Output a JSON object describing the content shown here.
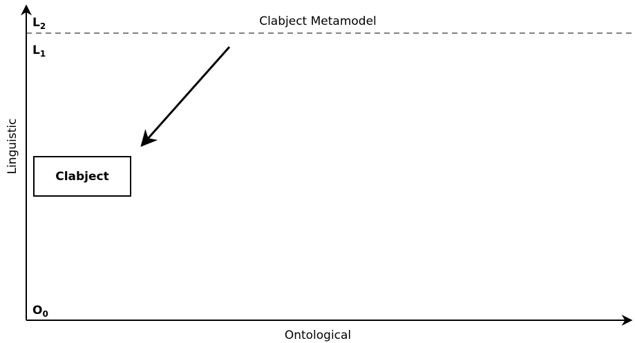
{
  "levels": [
    {
      "letter": "L",
      "index": "2"
    },
    {
      "letter": "L",
      "index": "1"
    },
    {
      "letter": "O",
      "index": "0"
    }
  ],
  "metamodel_label": "Clabject Metamodel",
  "box_label": "Clabject",
  "axes": {
    "vertical": "Linguistic",
    "horizontal": "Ontological"
  }
}
